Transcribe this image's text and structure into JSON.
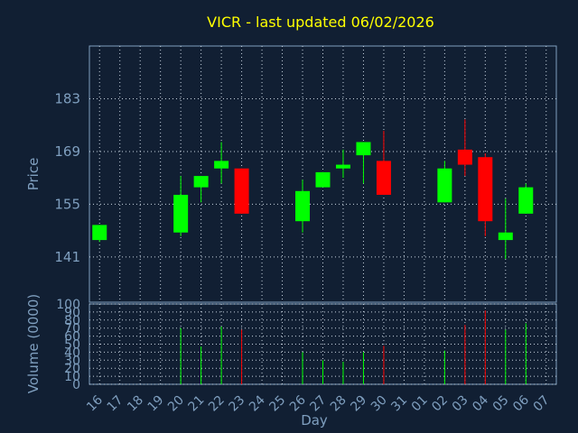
{
  "chart_data": {
    "type": "candlestick",
    "title": "VICR - last updated 06/02/2026",
    "xlabel": "Day",
    "price_panel": {
      "ylabel": "Price",
      "yticks": [
        141,
        155,
        169,
        183
      ],
      "ylim": [
        129,
        197
      ],
      "grid": true
    },
    "volume_panel": {
      "ylabel": "Volume (0000)",
      "yticks": [
        0,
        10,
        20,
        30,
        40,
        50,
        60,
        70,
        80,
        90,
        100
      ],
      "ylim": [
        0,
        100
      ],
      "grid": true
    },
    "x_ticks": [
      "16",
      "17",
      "18",
      "19",
      "20",
      "21",
      "22",
      "23",
      "24",
      "25",
      "26",
      "27",
      "28",
      "29",
      "30",
      "31",
      "01",
      "02",
      "03",
      "04",
      "05",
      "06",
      "07"
    ],
    "candles": [
      {
        "day": "16",
        "open": 145.5,
        "high": 149.5,
        "low": 145,
        "close": 149.5,
        "volume": 0
      },
      {
        "day": "20",
        "open": 147.5,
        "high": 162.5,
        "low": 146.5,
        "close": 157.5,
        "volume": 70
      },
      {
        "day": "21",
        "open": 159.5,
        "high": 162.5,
        "low": 155.5,
        "close": 162.5,
        "volume": 47
      },
      {
        "day": "22",
        "open": 164.5,
        "high": 171.5,
        "low": 160.5,
        "close": 166.5,
        "volume": 72
      },
      {
        "day": "23",
        "open": 164.5,
        "high": 164.5,
        "low": 152.5,
        "close": 152.5,
        "volume": 68
      },
      {
        "day": "26",
        "open": 150.5,
        "high": 161.5,
        "low": 147.5,
        "close": 158.5,
        "volume": 40
      },
      {
        "day": "27",
        "open": 159.5,
        "high": 163.5,
        "low": 159.5,
        "close": 163.5,
        "volume": 30
      },
      {
        "day": "28",
        "open": 164.5,
        "high": 169.5,
        "low": 162,
        "close": 165.5,
        "volume": 28
      },
      {
        "day": "29",
        "open": 168,
        "high": 171.5,
        "low": 160.5,
        "close": 171.5,
        "volume": 40
      },
      {
        "day": "30",
        "open": 166.5,
        "high": 174.5,
        "low": 157.5,
        "close": 157.5,
        "volume": 48
      },
      {
        "day": "02",
        "open": 155.5,
        "high": 166.5,
        "low": 155.5,
        "close": 164.5,
        "volume": 42
      },
      {
        "day": "03",
        "open": 169.5,
        "high": 177.5,
        "low": 162.5,
        "close": 165.5,
        "volume": 74
      },
      {
        "day": "04",
        "open": 167.5,
        "high": 168.5,
        "low": 146.5,
        "close": 150.5,
        "volume": 92
      },
      {
        "day": "05",
        "open": 145.5,
        "high": 156.5,
        "low": 140.5,
        "close": 147.5,
        "volume": 68
      },
      {
        "day": "06",
        "open": 152.5,
        "high": 160.5,
        "low": 152.5,
        "close": 159.5,
        "volume": 76
      }
    ],
    "colors": {
      "background": "#111f33",
      "plot_border": "#7f9fbf",
      "grid": "#c8d4e0",
      "up": "#00ff00",
      "down": "#ff0000",
      "title": "#ffff00",
      "axis_text": "#7f9fbf"
    }
  }
}
